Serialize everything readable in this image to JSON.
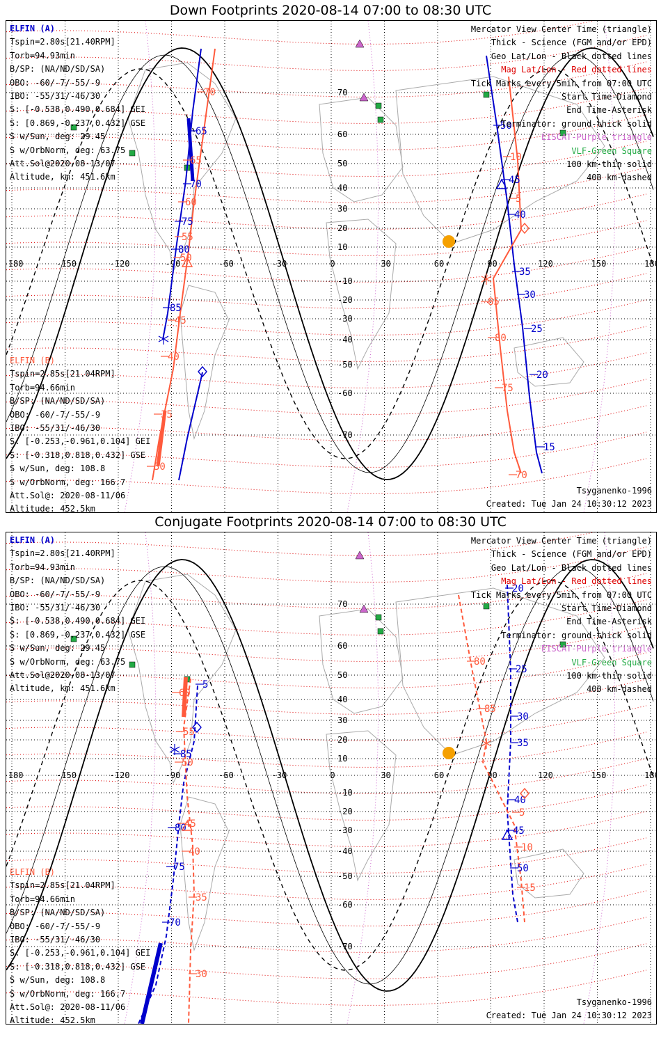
{
  "top": {
    "title": "Down Footprints 2020-08-14 07:00 to 08:30 UTC",
    "elfin_a": [
      "ELFIN (A)",
      "Tspin=2.80s[21.40RPM]",
      "Torb=94.93min",
      "B/SP: (NA/ND/SD/SA)",
      "OBO: -60/-7/-55/-9",
      "IBO: -55/31/-46/30",
      "S: [-0.538,0.490,0.684] GEI",
      "S: [0.869,-0.237,0.432] GSE",
      "S w/Sun, deg: 29.45",
      "S w/OrbNorm, deg: 63.75",
      "Att.Sol@2020-08-13/07",
      "Altitude, km: 451.6km"
    ],
    "elfin_b": [
      "ELFIN (B)",
      "Tspin=2.85s[21.04RPM]",
      "Torb=94.66min",
      "B/SP: (NA/ND/SD/SA)",
      "OBO: -60/-7/-55/-9",
      "IBO: -55/31/-46/30",
      "S: [-0.253,-0.961,0.104] GEI",
      "S: [-0.318,0.818,0.432] GSE",
      "S w/Sun, deg: 108.8",
      "S w/OrbNorm, deg: 166.7",
      "Att.Sol@: 2020-08-11/06",
      "Altitude: 452.5km"
    ],
    "legend": [
      "Mercator View Center Time (triangle)",
      "Thick - Science (FGM and/or EPD)",
      "Geo Lat/Lon - Black dotted lines",
      "Mag Lat/Lon - Red dotted lines",
      "Tick Marks every 5min from 07:00 UTC",
      "Start Time-Diamond",
      "End Time-Asterisk",
      "Terminator: ground-thick solid",
      "EISCAT-Purple triangle",
      "VLF-Green Square",
      "100 km-thin solid",
      "400 km-dashed"
    ],
    "model": "Tsyganenko-1996",
    "created": "Created: Tue Jan 24 10:30:12 2023"
  },
  "bottom": {
    "title": "Conjugate Footprints 2020-08-14 07:00 to 08:30 UTC",
    "elfin_a": [
      "ELFIN (A)",
      "Tspin=2.80s[21.40RPM]",
      "Torb=94.93min",
      "B/SP: (NA/ND/SD/SA)",
      "OBO: -60/-7/-55/-9",
      "IBO: -55/31/-46/30",
      "S: [-0.538,0.490,0.684] GEI",
      "S: [0.869,-0.237,0.432] GSE",
      "S w/Sun, deg: 29.45",
      "S w/OrbNorm, deg: 63.75",
      "Att.Sol@2020-08-13/07",
      "Altitude, km: 451.6km"
    ],
    "elfin_b": [
      "ELFIN (B)",
      "Tspin=2.85s[21.04RPM]",
      "Torb=94.66min",
      "B/SP: (NA/ND/SD/SA)",
      "OBO: -60/-7/-55/-9",
      "IBO: -55/31/-46/30",
      "S: [-0.253,-0.961,0.104] GEI",
      "S: [-0.318,0.818,0.432] GSE",
      "S w/Sun, deg: 108.8",
      "S w/OrbNorm, deg: 166.7",
      "Att.Sol@: 2020-08-11/06",
      "Altitude: 452.5km"
    ],
    "legend": [
      "Mercator View Center Time (triangle)",
      "Thick - Science (FGM and/or EPD)",
      "Geo Lat/Lon - Black dotted lines",
      "Mag Lat/Lon - Red dotted lines",
      "Tick Marks every 5min from 07:00 UTC",
      "Start Time-Diamond",
      "End Time-Asterisk",
      "Terminator: ground-thick solid",
      "EISCAT-Purple triangle",
      "VLF-Green Square",
      "100 km-thin solid",
      "400 km-dashed"
    ],
    "model": "Tsyganenko-1996",
    "created": "Created: Tue Jan 24 10:30:12 2023"
  },
  "axis": {
    "lon_labels": [
      "-180",
      "-150",
      "-120",
      "-90",
      "-60",
      "-30",
      "0",
      "30",
      "60",
      "90",
      "120",
      "150",
      "180"
    ],
    "lat_labels": [
      "-70",
      "-60",
      "-50",
      "-40",
      "-30",
      "-20",
      "-10",
      "10",
      "20",
      "30",
      "40",
      "50",
      "60",
      "70"
    ]
  },
  "colors": {
    "elfin_a": "#0000cc",
    "elfin_b": "#ff5a3c",
    "mag_grid": "#dd0000",
    "eiscat": "#cc66cc",
    "vlf": "#22aa44",
    "sun": "#f5a000"
  },
  "top_tracks": {
    "a_left_labels": [
      "65",
      "70",
      "75",
      "80",
      "85"
    ],
    "b_left_labels": [
      "70",
      "65",
      "60",
      "55",
      "50",
      "45",
      "40",
      "35",
      "30"
    ],
    "a_right_labels": [
      "50",
      "45",
      "40",
      "35",
      "30",
      "25",
      "20",
      "15"
    ],
    "b_right_labels": [
      "10",
      "5",
      "85",
      "80",
      "75",
      "70"
    ]
  },
  "bottom_tracks": {
    "a_left_labels": [
      "5",
      "85",
      "80",
      "75",
      "70"
    ],
    "b_left_labels": [
      "60",
      "55",
      "50",
      "45",
      "40",
      "35",
      "30"
    ],
    "a_right_labels": [
      "20",
      "25",
      "30",
      "35",
      "40",
      "45",
      "50"
    ],
    "b_right_labels": [
      "80",
      "85",
      "5",
      "10",
      "15"
    ]
  }
}
